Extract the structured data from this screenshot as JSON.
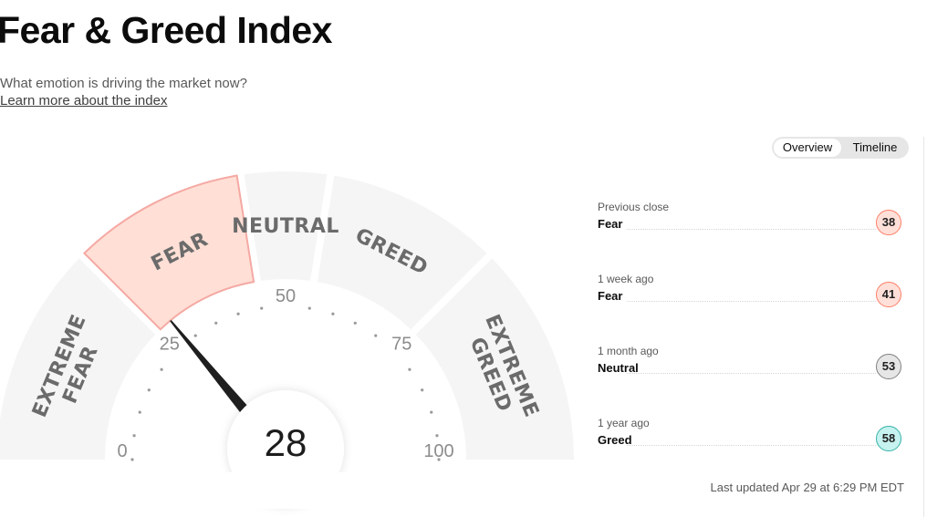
{
  "header": {
    "title": "Fear & Greed Index",
    "subtitle": "What emotion is driving the market now?",
    "learn_link": "Learn more about the index"
  },
  "view_toggle": {
    "options": [
      "Overview",
      "Timeline"
    ],
    "selected": "Overview"
  },
  "gauge": {
    "value": 28,
    "min": 0,
    "max": 100,
    "segments": [
      {
        "label": "EXTREME\nFEAR",
        "range": [
          0,
          25
        ]
      },
      {
        "label": "FEAR",
        "range": [
          25,
          45
        ]
      },
      {
        "label": "NEUTRAL",
        "range": [
          45,
          55
        ]
      },
      {
        "label": "GREED",
        "range": [
          55,
          75
        ]
      },
      {
        "label": "EXTREME\nGREED",
        "range": [
          75,
          100
        ]
      }
    ],
    "active_segment": "FEAR",
    "ticks": [
      "0",
      "25",
      "50",
      "75",
      "100"
    ]
  },
  "history": [
    {
      "label": "Previous close",
      "rating": "Fear",
      "value": "38",
      "color": "#ffe0d9",
      "border": "#ff7d66"
    },
    {
      "label": "1 week ago",
      "rating": "Fear",
      "value": "41",
      "color": "#ffe0d9",
      "border": "#ff7d66"
    },
    {
      "label": "1 month ago",
      "rating": "Neutral",
      "value": "53",
      "color": "#e6e6e6",
      "border": "#808080"
    },
    {
      "label": "1 year ago",
      "rating": "Greed",
      "value": "58",
      "color": "#c6f2ef",
      "border": "#36b3a8"
    }
  ],
  "last_updated": "Last updated Apr 29 at 6:29 PM EDT",
  "colors": {
    "active_fill": "#ffdfd6",
    "active_stroke": "#f5a9a3",
    "inactive_fill": "#f5f5f5",
    "label_color": "#6b6b6b",
    "needle": "#1f1f1f"
  }
}
